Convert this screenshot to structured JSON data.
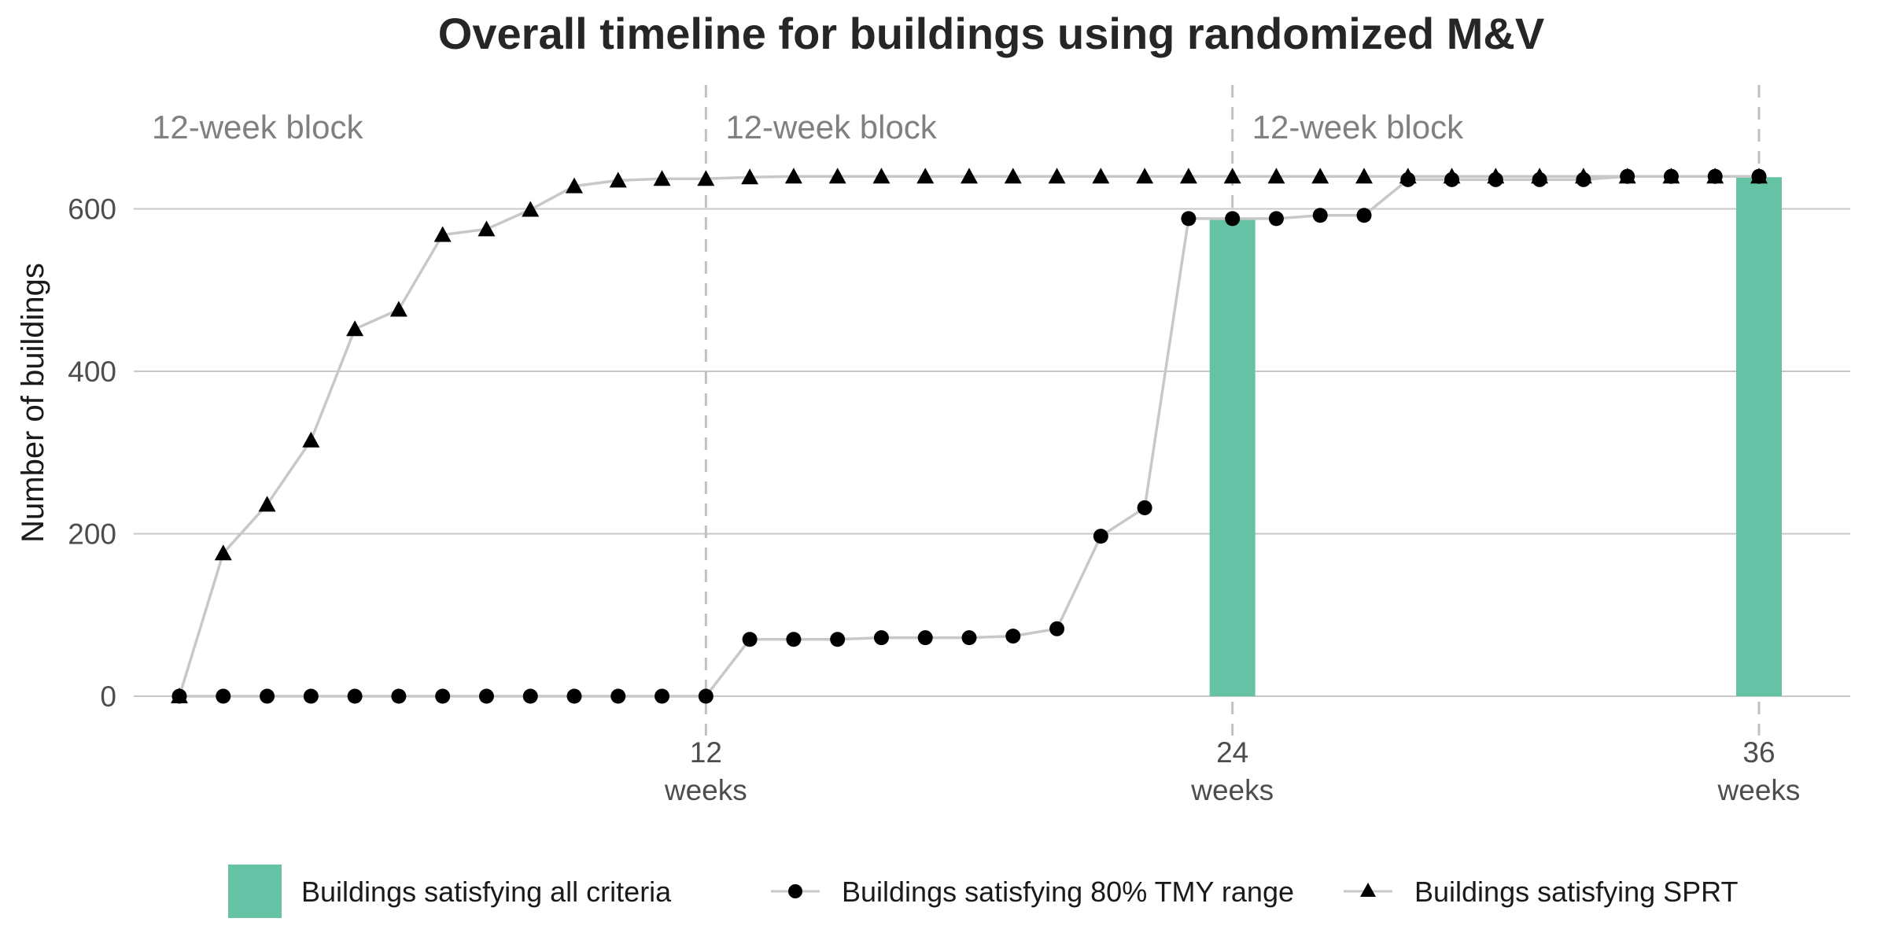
{
  "chart_data": {
    "type": "line",
    "title": "Overall timeline for buildings using randomized M&V",
    "ylabel": "Number of buildings",
    "xlabel": "",
    "x_week_range": [
      0,
      36
    ],
    "ylim": [
      0,
      700
    ],
    "y_ticks": [
      0,
      200,
      400,
      600
    ],
    "x_ticks": [
      {
        "value": 12,
        "label": "12",
        "sublabel": "weeks"
      },
      {
        "value": 24,
        "label": "24",
        "sublabel": "weeks"
      },
      {
        "value": 36,
        "label": "36",
        "sublabel": "weeks"
      }
    ],
    "block_label": "12-week block",
    "block_starts": [
      0,
      12,
      24
    ],
    "dividers": [
      12,
      24,
      36
    ],
    "grid": true,
    "legend_position": "bottom",
    "colors": {
      "bars": "#66c2a5",
      "line": "#c8c8c8",
      "marker": "#000000",
      "grid": "#c8c8c8",
      "divider": "#c0c0c0"
    },
    "bars": {
      "name": "Buildings satisfying all criteria",
      "x": [
        24,
        36
      ],
      "values": [
        588,
        639
      ]
    },
    "series": [
      {
        "name": "Buildings satisfying 80% TMY range",
        "marker": "circle",
        "x": [
          0,
          1,
          2,
          3,
          4,
          5,
          6,
          7,
          8,
          9,
          10,
          11,
          12,
          13,
          14,
          15,
          16,
          17,
          18,
          19,
          20,
          21,
          22,
          23,
          24,
          25,
          26,
          27,
          28,
          29,
          30,
          31,
          32,
          33,
          34,
          35,
          36
        ],
        "values": [
          0,
          0,
          0,
          0,
          0,
          0,
          0,
          0,
          0,
          0,
          0,
          0,
          0,
          70,
          70,
          70,
          72,
          72,
          72,
          74,
          83,
          197,
          232,
          588,
          588,
          588,
          592,
          592,
          636,
          636,
          636,
          636,
          636,
          640,
          640,
          640,
          640
        ]
      },
      {
        "name": "Buildings satisfying SPRT",
        "marker": "triangle",
        "x": [
          0,
          1,
          2,
          3,
          4,
          5,
          6,
          7,
          8,
          9,
          10,
          11,
          12,
          13,
          14,
          15,
          16,
          17,
          18,
          19,
          20,
          21,
          22,
          23,
          24,
          25,
          26,
          27,
          28,
          29,
          30,
          31,
          32,
          33,
          34,
          35,
          36
        ],
        "values": [
          0,
          176,
          236,
          315,
          452,
          476,
          568,
          575,
          599,
          628,
          635,
          637,
          637,
          639,
          640,
          640,
          640,
          640,
          640,
          640,
          640,
          640,
          640,
          640,
          640,
          640,
          640,
          640,
          640,
          640,
          640,
          640,
          640,
          640,
          640,
          640,
          640
        ]
      }
    ]
  }
}
